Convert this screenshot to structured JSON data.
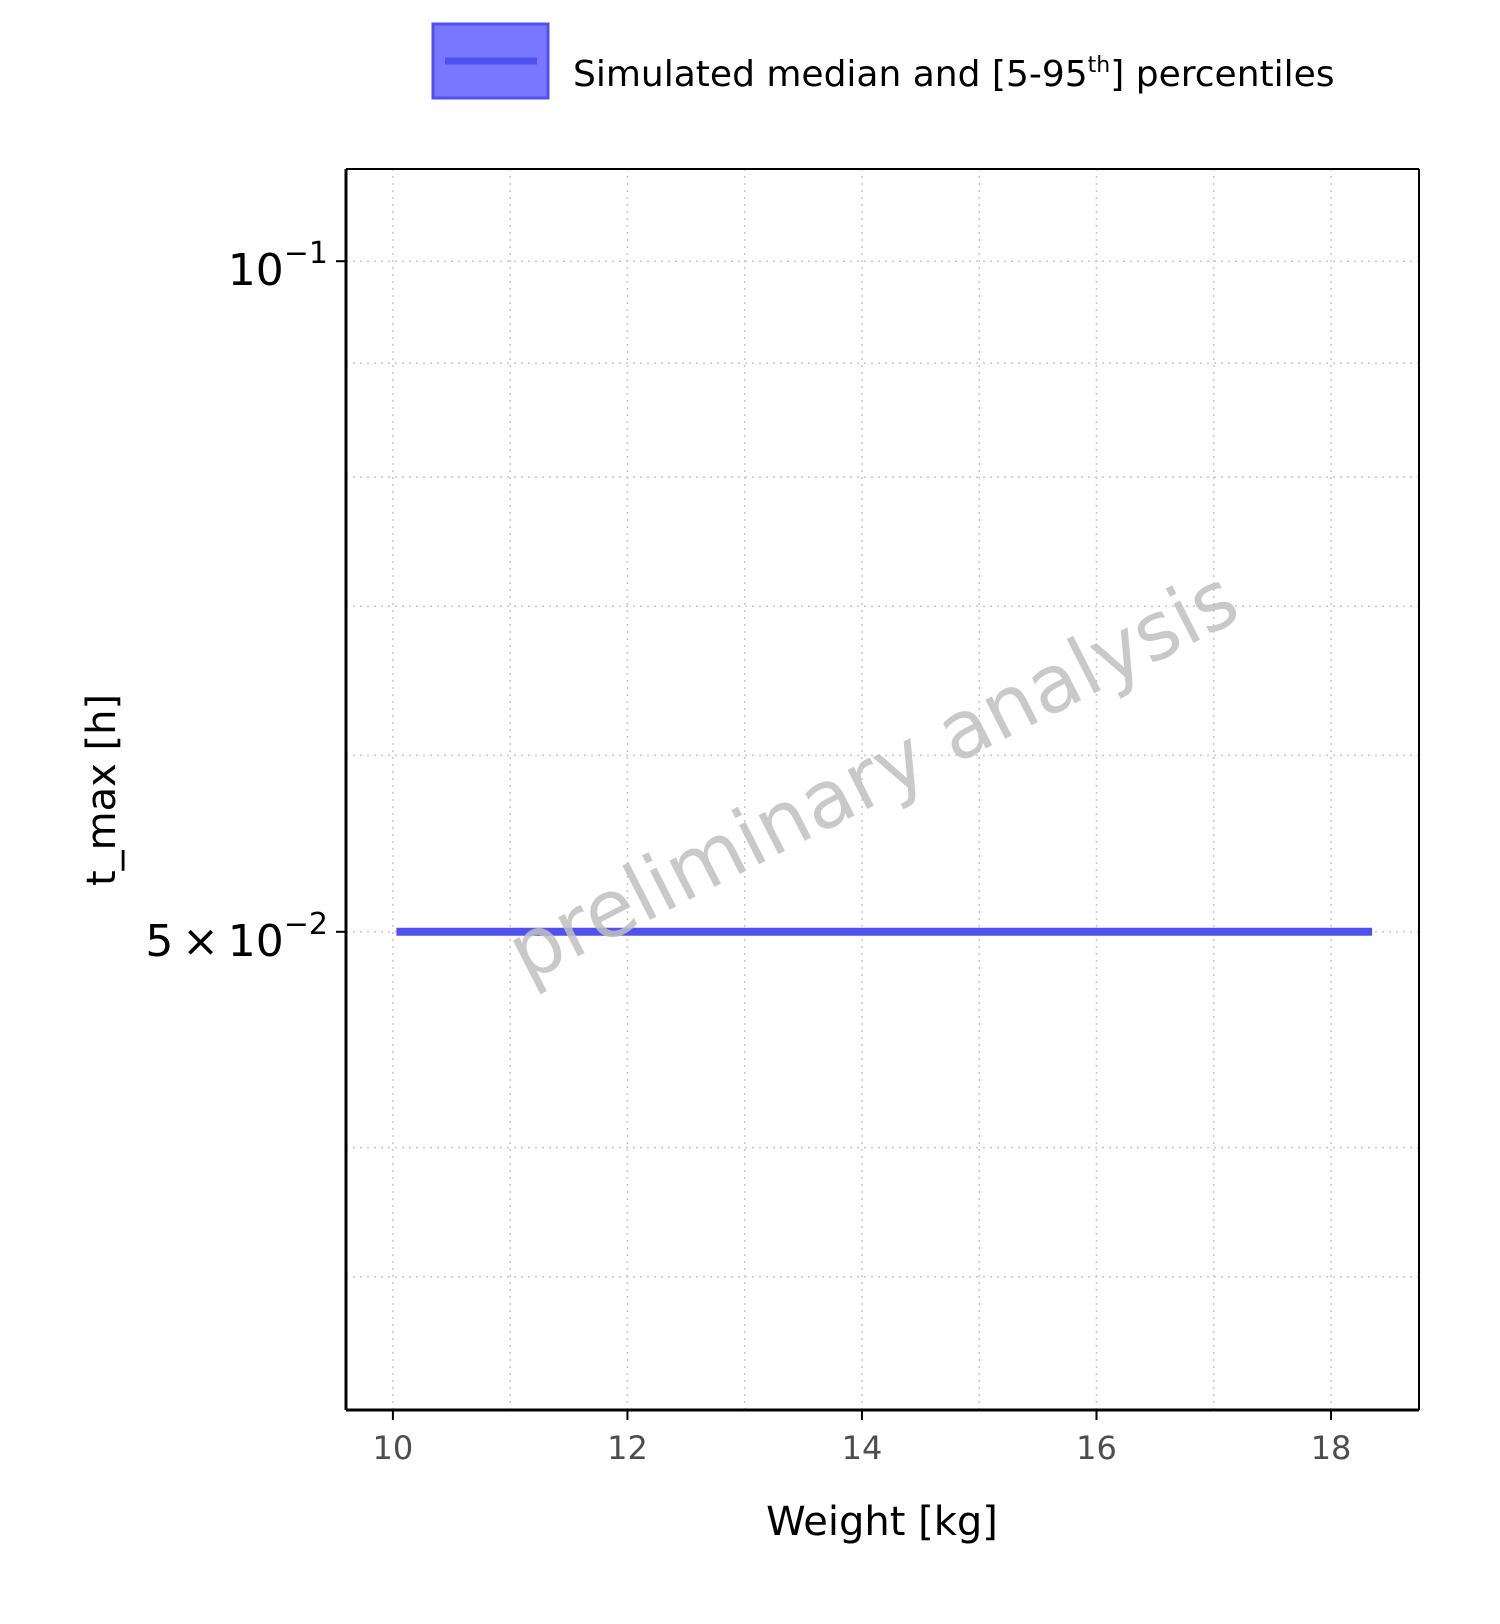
{
  "chart_data": {
    "type": "line",
    "legend": {
      "entries": [
        {
          "label_main": "Simulated median and [5-95",
          "label_sup": "th",
          "label_end": "] percentiles",
          "color": "#5050f0",
          "fill_color": "#7777ff"
        }
      ],
      "placement": "top"
    },
    "xlabel": "Weight [kg]",
    "ylabel": "t_max [h]",
    "xlim": [
      9.6,
      18.75
    ],
    "ylim": [
      0.0305,
      0.11
    ],
    "yscale": "log",
    "grid": true,
    "x_ticks": [
      {
        "value": 10,
        "label": "10"
      },
      {
        "value": 12,
        "label": "12"
      },
      {
        "value": 14,
        "label": "14"
      },
      {
        "value": 16,
        "label": "16"
      },
      {
        "value": 18,
        "label": "18"
      }
    ],
    "x_minor_ticks": [
      11,
      13,
      15,
      17
    ],
    "y_ticks": [
      {
        "value": 0.1,
        "base": "10",
        "exp": "−1"
      },
      {
        "value": 0.05,
        "base": "5 × 10",
        "exp": "−2"
      }
    ],
    "y_minor_gridlines": [
      0.09,
      0.08,
      0.07,
      0.06,
      0.04,
      0.035
    ],
    "series": [
      {
        "name": "Simulated median and [5-95th] percentiles",
        "x": [
          10.03,
          18.35
        ],
        "y": [
          0.05,
          0.05
        ],
        "ribbon_lower": [
          0.05,
          0.05
        ],
        "ribbon_upper": [
          0.05,
          0.05
        ],
        "color": "#5050f0"
      }
    ],
    "watermark": "preliminary analysis"
  }
}
